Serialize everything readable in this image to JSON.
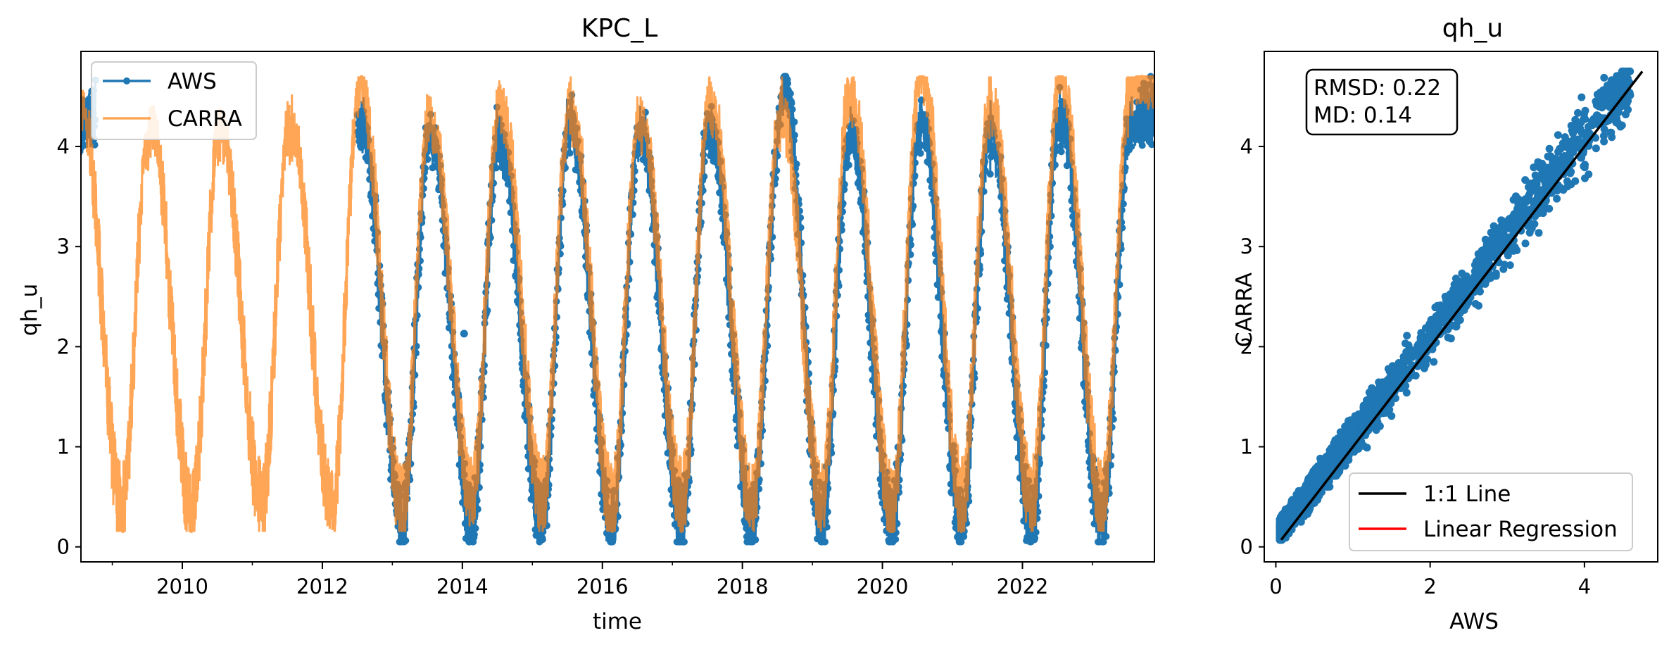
{
  "chart_data": [
    {
      "type": "line",
      "title": "KPC_L",
      "xlabel": "time",
      "ylabel": "qh_u",
      "xlim": [
        "2008-07-20",
        "2023-11-20"
      ],
      "ylim": [
        -0.15,
        4.95
      ],
      "x_ticks": [
        "2010",
        "2012",
        "2014",
        "2016",
        "2018",
        "2020",
        "2022"
      ],
      "y_ticks": [
        "0",
        "1",
        "2",
        "3",
        "4"
      ],
      "legend": {
        "position": "upper-left",
        "entries": [
          "AWS",
          "CARRA"
        ]
      },
      "colors": {
        "AWS": "#1f77b4",
        "CARRA": "#ff7f0e"
      },
      "series": [
        {
          "name": "AWS",
          "style": "line with circle markers",
          "seasonal_peaks": [
            {
              "date": "2008-08-01",
              "value": 4.2
            },
            {
              "date": "2012-07-20",
              "value": 4.2
            },
            {
              "date": "2013-07-15",
              "value": 4.1
            },
            {
              "date": "2014-07-10",
              "value": 4.1
            },
            {
              "date": "2015-07-15",
              "value": 4.2
            },
            {
              "date": "2016-07-15",
              "value": 4.1
            },
            {
              "date": "2017-07-10",
              "value": 4.2
            },
            {
              "date": "2018-08-05",
              "value": 4.55
            },
            {
              "date": "2019-07-15",
              "value": 4.1
            },
            {
              "date": "2020-07-20",
              "value": 4.2
            },
            {
              "date": "2021-07-15",
              "value": 4.1
            },
            {
              "date": "2022-07-15",
              "value": 4.3
            },
            {
              "date": "2023-07-20",
              "value": 4.2
            }
          ],
          "seasonal_lows": [
            {
              "date": "2013-02-20",
              "value": 0.07
            },
            {
              "date": "2014-02-20",
              "value": 0.1
            },
            {
              "date": "2015-02-20",
              "value": 0.1
            },
            {
              "date": "2016-02-20",
              "value": 0.08
            },
            {
              "date": "2017-02-20",
              "value": 0.1
            },
            {
              "date": "2018-02-20",
              "value": 0.1
            },
            {
              "date": "2019-02-20",
              "value": 0.1
            },
            {
              "date": "2020-02-20",
              "value": 0.1
            },
            {
              "date": "2021-02-20",
              "value": 0.1
            },
            {
              "date": "2022-02-20",
              "value": 0.1
            },
            {
              "date": "2023-02-20",
              "value": 0.1
            }
          ],
          "notable_points": [
            {
              "date": "2014-01-10",
              "value": 2.13
            },
            {
              "date": "2018-08-05",
              "value": 4.55
            }
          ]
        },
        {
          "name": "CARRA",
          "style": "line",
          "seasonal_peaks": [
            {
              "date": "2008-07-20",
              "value": 4.35
            },
            {
              "date": "2009-07-15",
              "value": 4.2
            },
            {
              "date": "2010-07-15",
              "value": 4.15
            },
            {
              "date": "2011-07-15",
              "value": 4.2
            },
            {
              "date": "2012-07-15",
              "value": 4.6
            },
            {
              "date": "2013-07-15",
              "value": 4.3
            },
            {
              "date": "2014-07-15",
              "value": 4.4
            },
            {
              "date": "2015-07-15",
              "value": 4.4
            },
            {
              "date": "2016-07-15",
              "value": 4.3
            },
            {
              "date": "2017-07-15",
              "value": 4.4
            },
            {
              "date": "2018-07-20",
              "value": 4.3
            },
            {
              "date": "2019-07-15",
              "value": 4.5
            },
            {
              "date": "2020-07-20",
              "value": 4.75
            },
            {
              "date": "2021-07-15",
              "value": 4.4
            },
            {
              "date": "2022-07-15",
              "value": 4.7
            },
            {
              "date": "2023-07-20",
              "value": 4.6
            }
          ],
          "seasonal_lows": [
            {
              "date": "2009-02-20",
              "value": 0.25
            },
            {
              "date": "2010-02-20",
              "value": 0.2
            },
            {
              "date": "2011-02-20",
              "value": 0.25
            },
            {
              "date": "2012-02-20",
              "value": 0.2
            },
            {
              "date": "2013-02-20",
              "value": 0.2
            },
            {
              "date": "2014-02-20",
              "value": 0.3
            },
            {
              "date": "2015-02-20",
              "value": 0.3
            },
            {
              "date": "2016-02-20",
              "value": 0.25
            },
            {
              "date": "2017-02-20",
              "value": 0.3
            },
            {
              "date": "2018-02-20",
              "value": 0.3
            },
            {
              "date": "2019-02-20",
              "value": 0.3
            },
            {
              "date": "2020-02-20",
              "value": 0.25
            },
            {
              "date": "2021-02-20",
              "value": 0.3
            },
            {
              "date": "2022-02-20",
              "value": 0.3
            },
            {
              "date": "2023-02-20",
              "value": 0.3
            }
          ]
        }
      ]
    },
    {
      "type": "scatter",
      "title": "qh_u",
      "xlabel": "AWS",
      "ylabel": "CARRA",
      "xlim": [
        -0.15,
        4.95
      ],
      "ylim": [
        -0.15,
        4.95
      ],
      "x_ticks": [
        "0",
        "2",
        "4"
      ],
      "y_ticks": [
        "0",
        "1",
        "2",
        "3",
        "4"
      ],
      "annotation": [
        "RMSD: 0.22",
        "MD: 0.14"
      ],
      "annotation_position": "upper-left",
      "legend": {
        "position": "lower-right",
        "entries": [
          "1:1 Line",
          "Linear Regression"
        ]
      },
      "colors": {
        "points": "#1f77b4",
        "one_to_one": "#000000",
        "regression": "#ff0000"
      },
      "one_to_one_line": {
        "x": [
          0.07,
          4.75
        ],
        "y": [
          0.07,
          4.75
        ]
      },
      "point_cloud": {
        "x_range": [
          0.05,
          4.7
        ],
        "y_range": [
          0.07,
          4.75
        ],
        "spread_around_1to1": 0.35,
        "trend": "CARRA slightly above AWS"
      }
    }
  ]
}
